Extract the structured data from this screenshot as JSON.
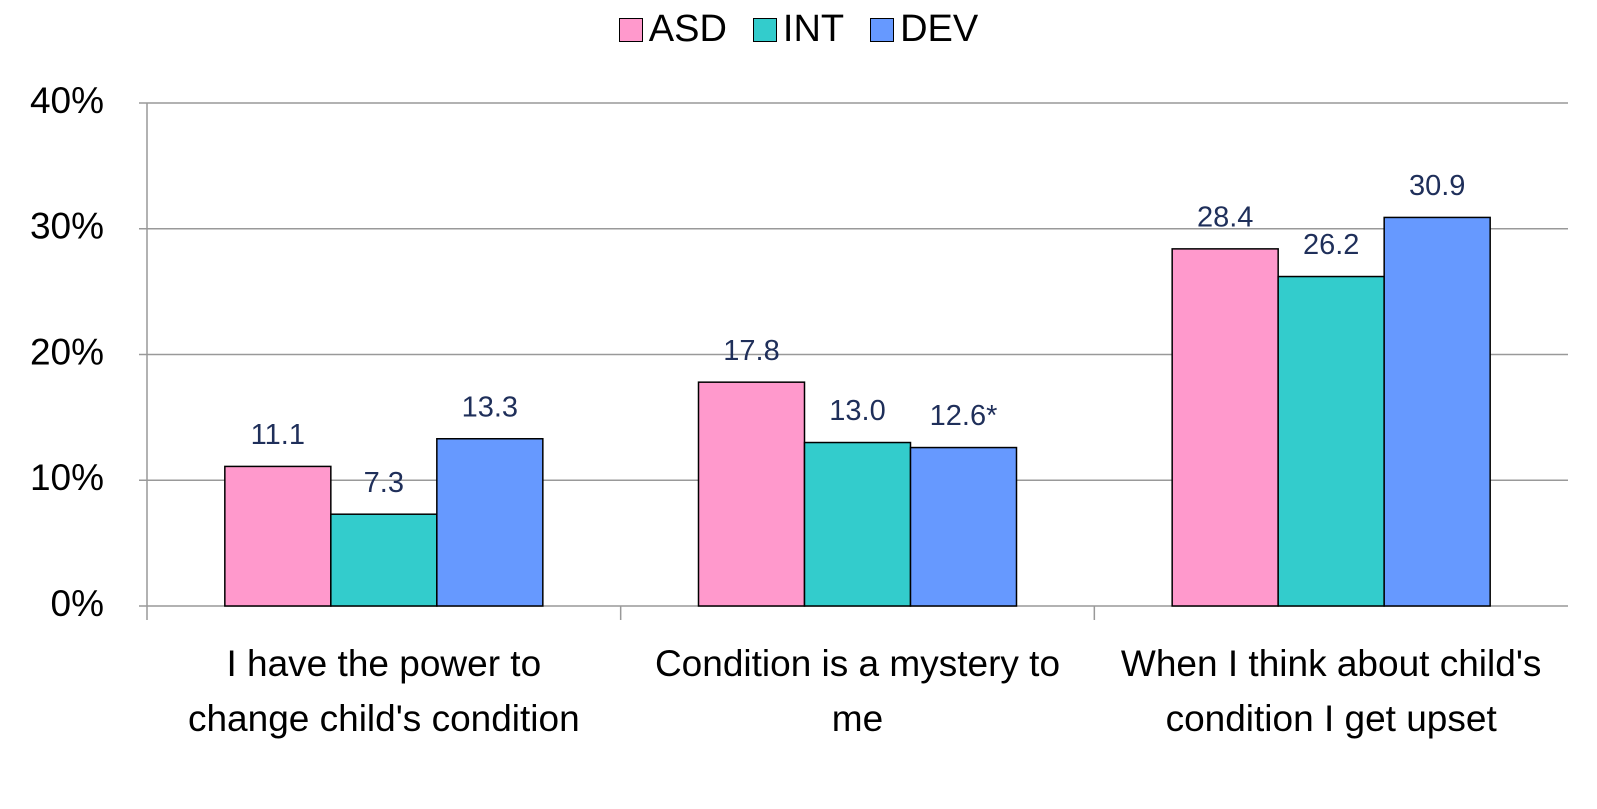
{
  "chart_data": {
    "type": "bar",
    "categories": [
      "I have the power to change child's condition",
      "Condition is a mystery to me",
      "When I think about child's condition I get upset"
    ],
    "series": [
      {
        "name": "ASD",
        "color": "#ff99cc",
        "values": [
          11.1,
          17.8,
          28.4
        ],
        "value_labels": [
          "11.1",
          "17.8",
          "28.4"
        ]
      },
      {
        "name": "INT",
        "color": "#33cccc",
        "values": [
          7.3,
          13.0,
          26.2
        ],
        "value_labels": [
          "7.3",
          "13.0",
          "26.2"
        ]
      },
      {
        "name": "DEV",
        "color": "#6699ff",
        "values": [
          13.3,
          12.6,
          30.9
        ],
        "value_labels": [
          "13.3",
          "12.6*",
          "30.9"
        ]
      }
    ],
    "ylim": [
      0,
      40
    ],
    "yticks": [
      {
        "value": 0,
        "label": "0%"
      },
      {
        "value": 10,
        "label": "10%"
      },
      {
        "value": 20,
        "label": "20%"
      },
      {
        "value": 30,
        "label": "30%"
      },
      {
        "value": 40,
        "label": "40%"
      }
    ],
    "grid": true,
    "legend": "top"
  }
}
